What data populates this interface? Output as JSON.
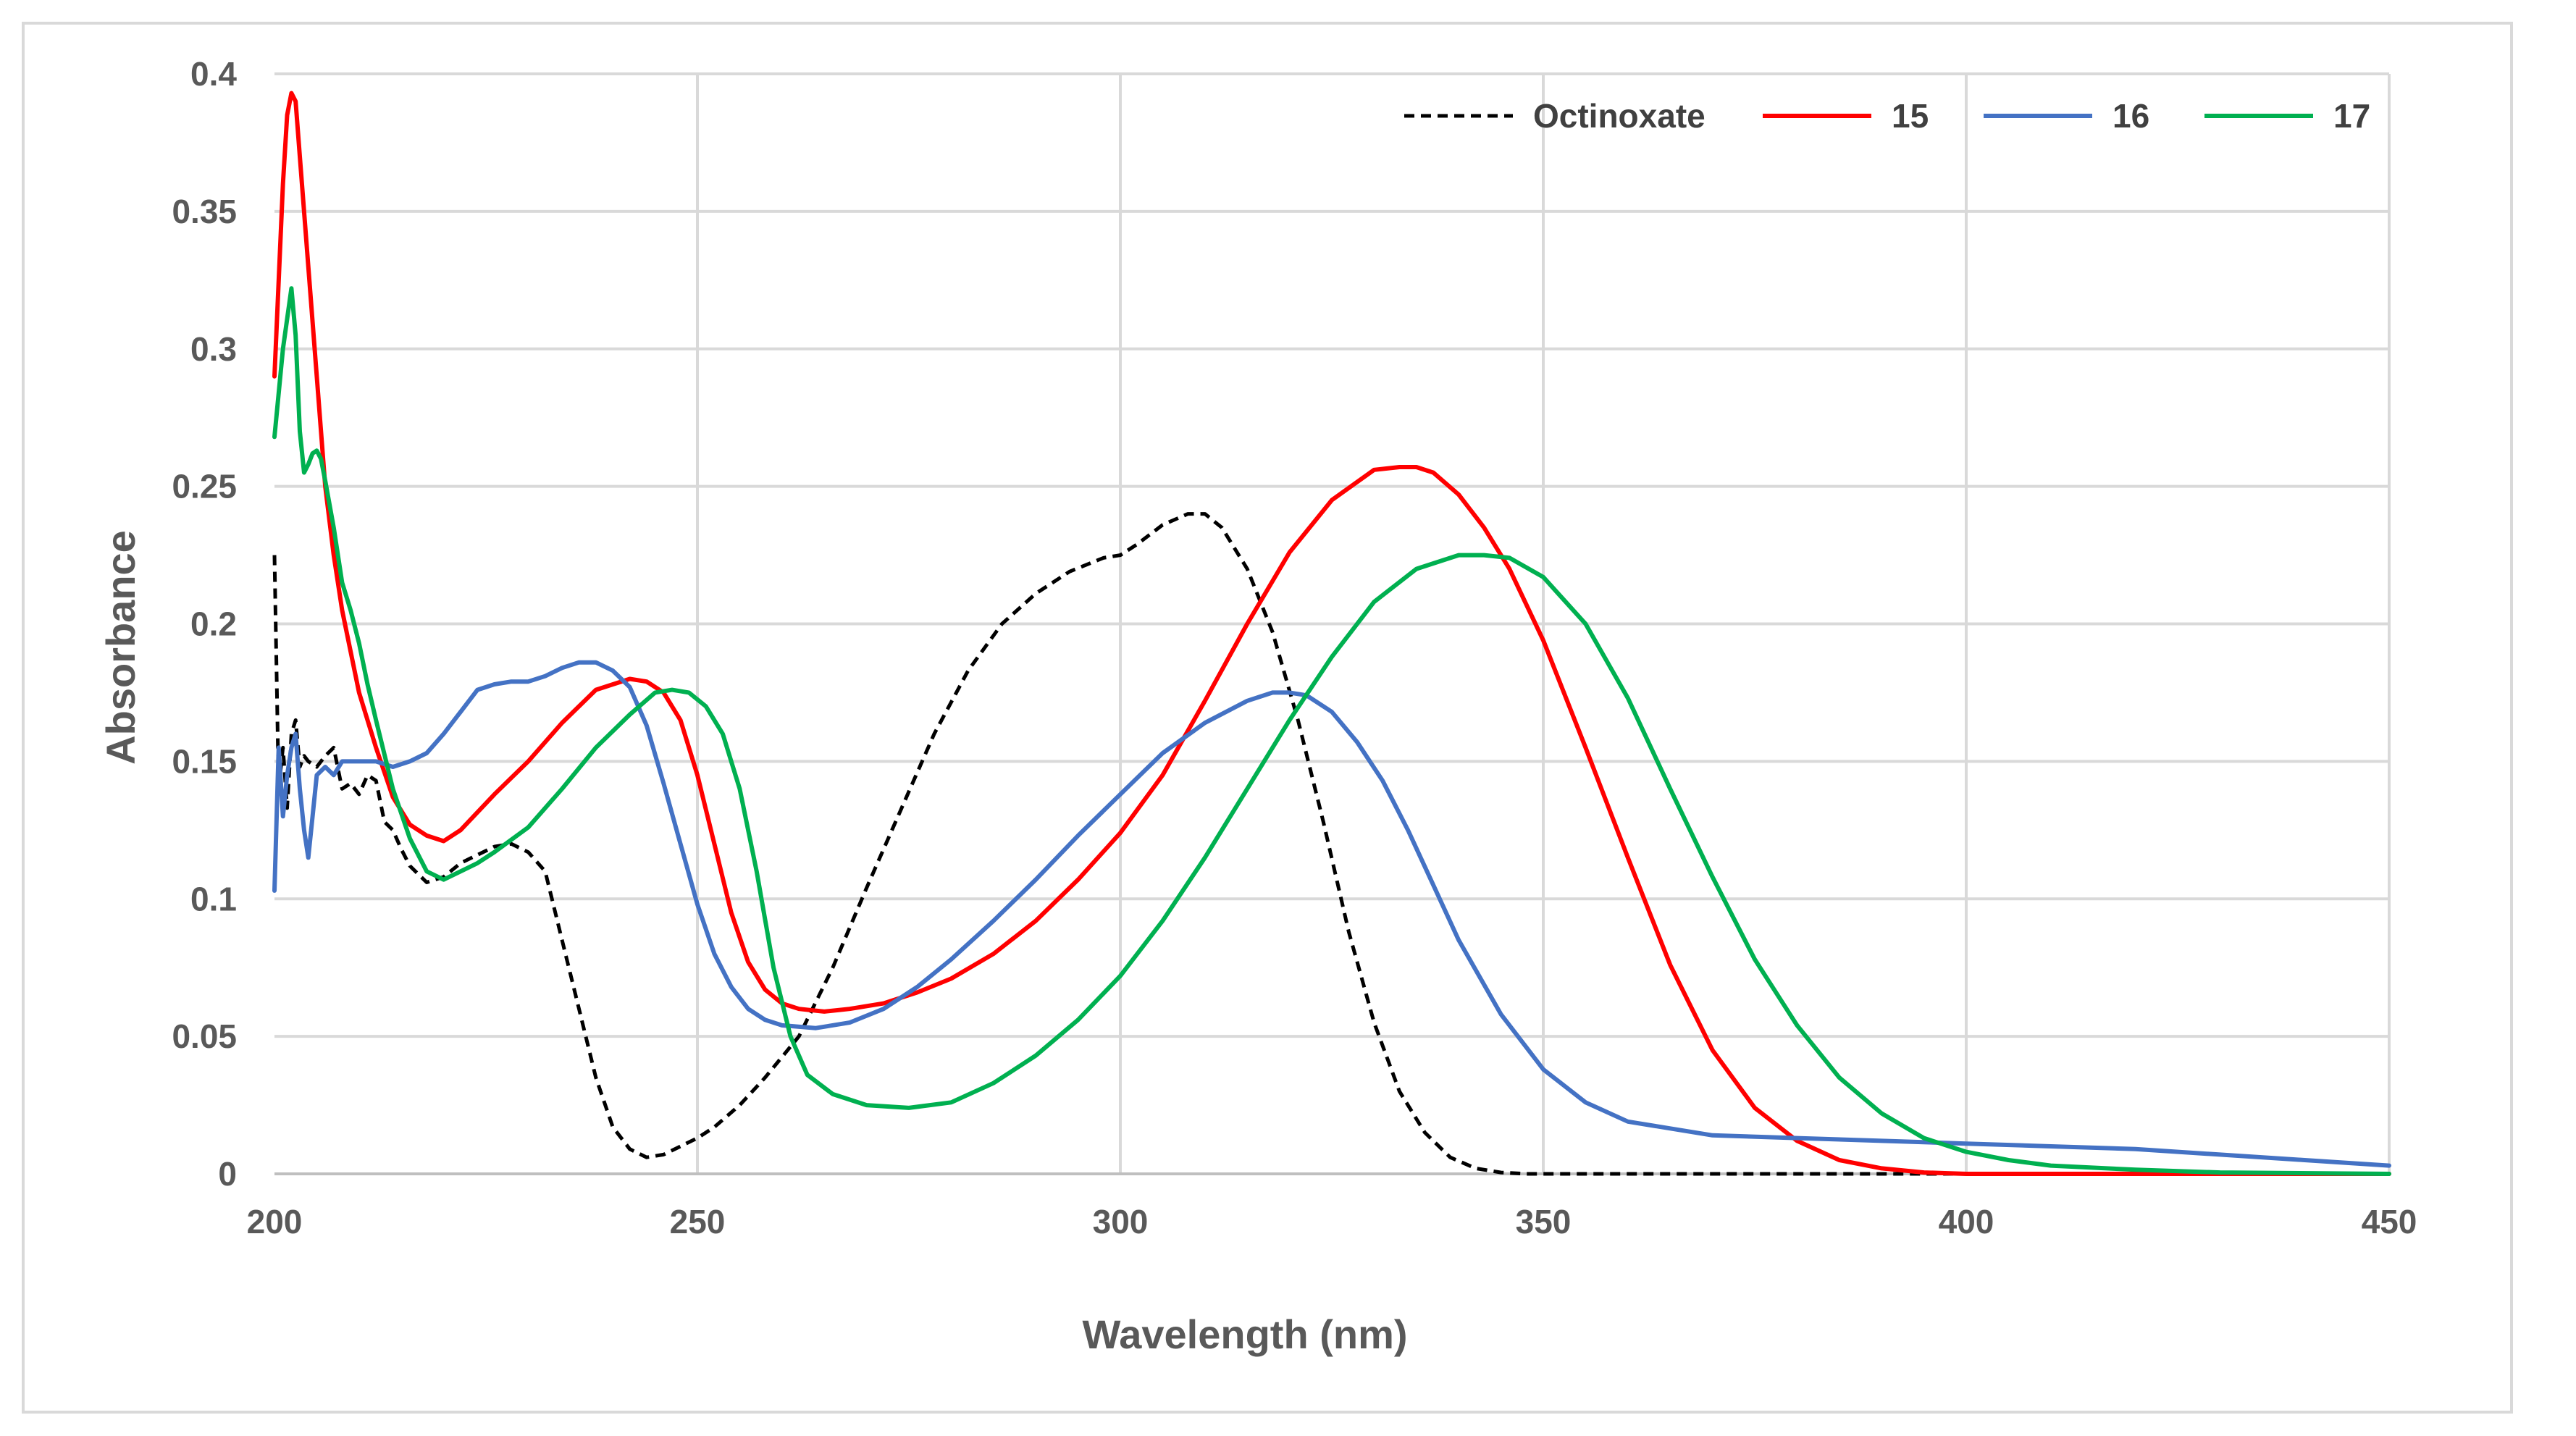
{
  "chart_data": {
    "type": "line",
    "title": "",
    "xlabel": "Wavelength (nm)",
    "ylabel": "Absorbance",
    "xlim": [
      200,
      450
    ],
    "ylim": [
      0,
      0.4
    ],
    "x_ticks": [
      "200",
      "250",
      "300",
      "350",
      "400",
      "450"
    ],
    "y_ticks": [
      "0",
      "0.05",
      "0.1",
      "0.15",
      "0.2",
      "0.25",
      "0.3",
      "0.35",
      "0.4"
    ],
    "grid": true,
    "legend_position": "top-right",
    "series": [
      {
        "name": "Octinoxate",
        "color": "#000000",
        "style": "dashed",
        "x": [
          200,
          200.5,
          201,
          201.5,
          202,
          202.5,
          203,
          203.5,
          204,
          205,
          206,
          207,
          208,
          209,
          210,
          211,
          212,
          213,
          214,
          215,
          216,
          218,
          220,
          222,
          224,
          226,
          228,
          230,
          232,
          234,
          236,
          238,
          240,
          242,
          244,
          246,
          248,
          250,
          252,
          255,
          258,
          262,
          266,
          270,
          274,
          278,
          282,
          286,
          290,
          294,
          298,
          300,
          302,
          305,
          308,
          310,
          312,
          315,
          318,
          321,
          324,
          327,
          330,
          333,
          336,
          339,
          342,
          345,
          348,
          355,
          380,
          420,
          450
        ],
        "values": [
          0.225,
          0.14,
          0.155,
          0.133,
          0.16,
          0.165,
          0.148,
          0.152,
          0.15,
          0.148,
          0.152,
          0.155,
          0.14,
          0.142,
          0.138,
          0.145,
          0.143,
          0.128,
          0.125,
          0.118,
          0.112,
          0.106,
          0.108,
          0.113,
          0.116,
          0.119,
          0.12,
          0.117,
          0.11,
          0.085,
          0.06,
          0.035,
          0.017,
          0.009,
          0.006,
          0.007,
          0.01,
          0.013,
          0.017,
          0.025,
          0.035,
          0.05,
          0.075,
          0.104,
          0.132,
          0.16,
          0.183,
          0.2,
          0.211,
          0.219,
          0.224,
          0.225,
          0.229,
          0.236,
          0.24,
          0.24,
          0.235,
          0.22,
          0.197,
          0.165,
          0.128,
          0.088,
          0.055,
          0.03,
          0.015,
          0.006,
          0.002,
          0.0005,
          0,
          0,
          0,
          0,
          0
        ]
      },
      {
        "name": "15",
        "color": "#ff0000",
        "style": "solid",
        "x": [
          200,
          201,
          201.5,
          202,
          202.5,
          203,
          204,
          205,
          206,
          207,
          208,
          209,
          210,
          212,
          214,
          216,
          218,
          220,
          222,
          226,
          230,
          234,
          238,
          242,
          244,
          246,
          248,
          250,
          252,
          254,
          256,
          258,
          260,
          262,
          265,
          268,
          272,
          276,
          280,
          285,
          290,
          295,
          300,
          305,
          310,
          315,
          320,
          325,
          330,
          333,
          335,
          337,
          340,
          343,
          346,
          350,
          355,
          360,
          365,
          370,
          375,
          380,
          385,
          390,
          395,
          400,
          410,
          450
        ],
        "values": [
          0.29,
          0.36,
          0.385,
          0.393,
          0.39,
          0.37,
          0.33,
          0.29,
          0.25,
          0.225,
          0.205,
          0.19,
          0.175,
          0.155,
          0.137,
          0.127,
          0.123,
          0.121,
          0.125,
          0.138,
          0.15,
          0.164,
          0.176,
          0.18,
          0.179,
          0.175,
          0.165,
          0.145,
          0.12,
          0.095,
          0.077,
          0.067,
          0.062,
          0.06,
          0.059,
          0.06,
          0.062,
          0.066,
          0.071,
          0.08,
          0.092,
          0.107,
          0.124,
          0.145,
          0.172,
          0.2,
          0.226,
          0.245,
          0.256,
          0.257,
          0.257,
          0.255,
          0.247,
          0.235,
          0.22,
          0.194,
          0.155,
          0.115,
          0.076,
          0.045,
          0.024,
          0.012,
          0.005,
          0.002,
          0.0005,
          0,
          0,
          0
        ]
      },
      {
        "name": "16",
        "color": "#4472c4",
        "style": "solid",
        "x": [
          200,
          200.5,
          201,
          201.5,
          202,
          202.5,
          203,
          203.5,
          204,
          204.5,
          205,
          206,
          207,
          208,
          209,
          210,
          212,
          214,
          216,
          218,
          220,
          222,
          224,
          226,
          228,
          230,
          232,
          234,
          236,
          238,
          240,
          242,
          244,
          246,
          248,
          250,
          252,
          254,
          256,
          258,
          260,
          264,
          268,
          272,
          276,
          280,
          285,
          290,
          295,
          300,
          305,
          310,
          315,
          318,
          320,
          322,
          325,
          328,
          331,
          334,
          337,
          340,
          345,
          350,
          355,
          360,
          370,
          380,
          390,
          400,
          410,
          420,
          430,
          440,
          450
        ],
        "values": [
          0.103,
          0.155,
          0.13,
          0.145,
          0.155,
          0.16,
          0.14,
          0.125,
          0.115,
          0.13,
          0.145,
          0.148,
          0.145,
          0.15,
          0.15,
          0.15,
          0.15,
          0.148,
          0.15,
          0.153,
          0.16,
          0.168,
          0.176,
          0.178,
          0.179,
          0.179,
          0.181,
          0.184,
          0.186,
          0.186,
          0.183,
          0.177,
          0.163,
          0.142,
          0.12,
          0.098,
          0.08,
          0.068,
          0.06,
          0.056,
          0.054,
          0.053,
          0.055,
          0.06,
          0.068,
          0.078,
          0.092,
          0.107,
          0.123,
          0.138,
          0.153,
          0.164,
          0.172,
          0.175,
          0.175,
          0.174,
          0.168,
          0.157,
          0.143,
          0.125,
          0.105,
          0.085,
          0.058,
          0.038,
          0.026,
          0.019,
          0.014,
          0.013,
          0.012,
          0.011,
          0.01,
          0.009,
          0.007,
          0.005,
          0.003
        ]
      },
      {
        "name": "17",
        "color": "#00b050",
        "style": "solid",
        "x": [
          200,
          201,
          202,
          202.5,
          203,
          203.5,
          204,
          204.5,
          205,
          205.5,
          206,
          207,
          208,
          209,
          210,
          211,
          212,
          214,
          216,
          218,
          220,
          222,
          224,
          226,
          230,
          234,
          238,
          242,
          245,
          247,
          249,
          251,
          253,
          255,
          257,
          259,
          261,
          263,
          266,
          270,
          275,
          280,
          285,
          290,
          295,
          300,
          305,
          310,
          315,
          320,
          325,
          330,
          335,
          340,
          343,
          346,
          350,
          355,
          360,
          365,
          370,
          375,
          380,
          385,
          390,
          395,
          400,
          405,
          410,
          420,
          430,
          450
        ],
        "values": [
          0.268,
          0.3,
          0.322,
          0.305,
          0.27,
          0.255,
          0.258,
          0.262,
          0.263,
          0.26,
          0.252,
          0.235,
          0.215,
          0.205,
          0.193,
          0.178,
          0.165,
          0.14,
          0.122,
          0.11,
          0.107,
          0.11,
          0.113,
          0.117,
          0.126,
          0.14,
          0.155,
          0.167,
          0.175,
          0.176,
          0.175,
          0.17,
          0.16,
          0.14,
          0.11,
          0.075,
          0.05,
          0.036,
          0.029,
          0.025,
          0.024,
          0.026,
          0.033,
          0.043,
          0.056,
          0.072,
          0.092,
          0.115,
          0.14,
          0.165,
          0.188,
          0.208,
          0.22,
          0.225,
          0.225,
          0.224,
          0.217,
          0.2,
          0.173,
          0.14,
          0.108,
          0.078,
          0.054,
          0.035,
          0.022,
          0.013,
          0.008,
          0.005,
          0.003,
          0.0015,
          0.0005,
          0
        ]
      }
    ]
  }
}
